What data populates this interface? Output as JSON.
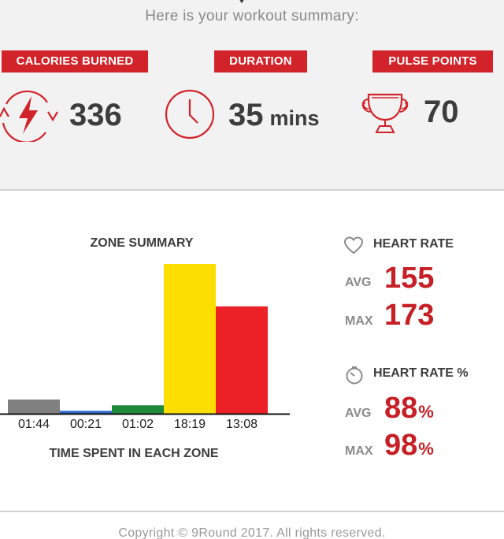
{
  "summary": {
    "intro": "Here is your workout summary:",
    "calories": {
      "label": "CALORIES BURNED",
      "value": "336",
      "icon": "lightning-cycle-icon"
    },
    "duration": {
      "label": "DURATION",
      "value": "35",
      "unit": "mins",
      "icon": "clock-icon"
    },
    "pulse_points": {
      "label": "PULSE POINTS",
      "value": "70",
      "icon": "trophy-icon"
    },
    "accent_color": "#d2232a"
  },
  "zone_summary": {
    "title": "ZONE SUMMARY",
    "caption": "TIME SPENT IN EACH ZONE"
  },
  "chart_data": {
    "type": "bar",
    "title": "ZONE SUMMARY",
    "xlabel": "TIME SPENT IN EACH ZONE",
    "ylabel": "",
    "categories": [
      "01:44",
      "00:21",
      "01:02",
      "18:19",
      "13:08"
    ],
    "values": [
      104,
      21,
      62,
      1099,
      788
    ],
    "value_units": "seconds",
    "colors": [
      "#808080",
      "#2f64c8",
      "#1e8a3c",
      "#fcdf00",
      "#ec2027"
    ],
    "ylim": [
      0,
      1099
    ],
    "grid": false,
    "legend": "none"
  },
  "heart_rate": {
    "title": "HEART RATE",
    "icon": "heart-outline-icon",
    "avg_label": "AVG",
    "avg": "155",
    "max_label": "MAX",
    "max": "173"
  },
  "heart_rate_pct": {
    "title": "HEART RATE %",
    "icon": "gauge-icon",
    "avg_label": "AVG",
    "avg": "88",
    "max_label": "MAX",
    "max": "98",
    "unit": "%"
  },
  "footer": {
    "copyright": "Copyright © 9Round 2017. All rights reserved."
  }
}
